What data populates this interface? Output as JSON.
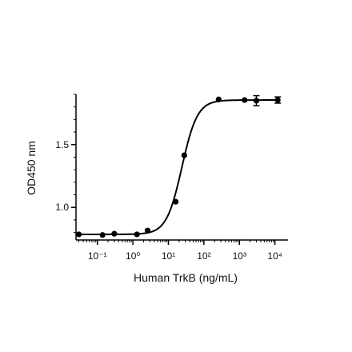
{
  "chart_data": {
    "type": "scatter",
    "xlabel": "Human TrkB (ng/mL)",
    "ylabel": "OD450 nm",
    "x_scale": "log",
    "xlim": [
      0.025,
      18000
    ],
    "ylim": [
      0.74,
      1.9
    ],
    "x_ticks": [
      {
        "value": 0.1,
        "label": "10⁻¹"
      },
      {
        "value": 1,
        "label": "10⁰"
      },
      {
        "value": 10,
        "label": "10¹"
      },
      {
        "value": 100,
        "label": "10²"
      },
      {
        "value": 1000,
        "label": "10³"
      },
      {
        "value": 10000,
        "label": "10⁴"
      }
    ],
    "y_ticks": [
      {
        "value": 1.0,
        "label": "1.0"
      },
      {
        "value": 1.5,
        "label": "1.5"
      }
    ],
    "grid": false,
    "legend": "none",
    "points": [
      {
        "x": 0.03,
        "y": 0.785
      },
      {
        "x": 0.14,
        "y": 0.78
      },
      {
        "x": 0.3,
        "y": 0.79
      },
      {
        "x": 1.3,
        "y": 0.785
      },
      {
        "x": 2.6,
        "y": 0.815
      },
      {
        "x": 16,
        "y": 1.045
      },
      {
        "x": 28,
        "y": 1.415
      },
      {
        "x": 260,
        "y": 1.86
      },
      {
        "x": 1400,
        "y": 1.855
      },
      {
        "x": 3000,
        "y": 1.85,
        "error": 0.04
      },
      {
        "x": 12000,
        "y": 1.855,
        "error": 0.025
      }
    ],
    "fit": {
      "bottom": 0.785,
      "top": 1.855,
      "ec50": 24,
      "hill": 2.0
    },
    "colors": {
      "marker": "#000000",
      "curve": "#000000",
      "axis": "#000000"
    }
  }
}
